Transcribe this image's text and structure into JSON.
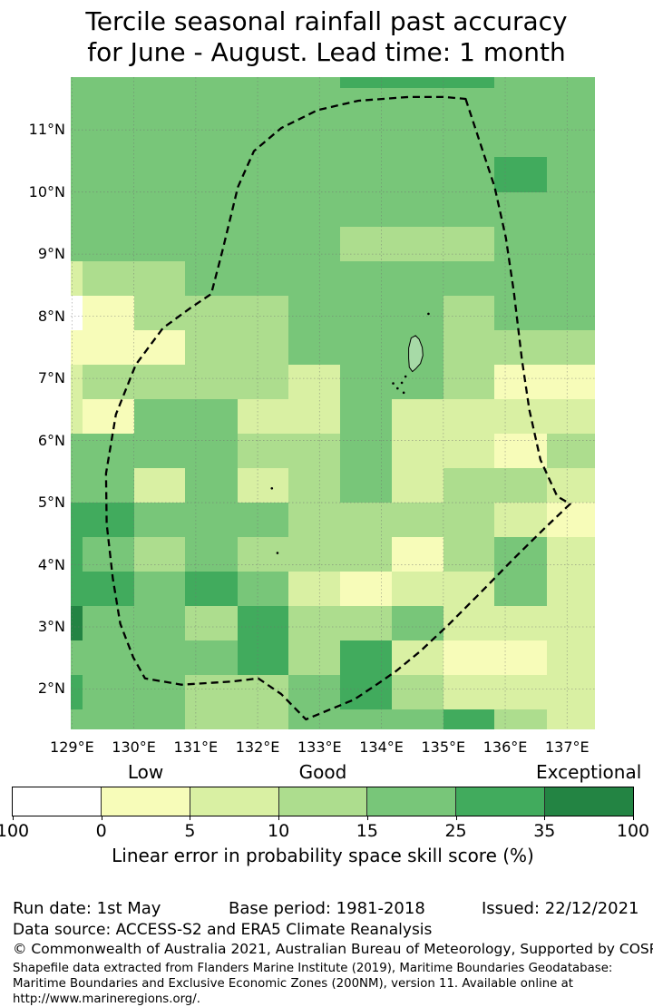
{
  "title": {
    "line1": "Tercile seasonal rainfall past accuracy",
    "line2": "for June - August. Lead time: 1 month"
  },
  "colorbar": {
    "region_labels": [
      "Low",
      "Good",
      "Exceptional"
    ],
    "region_positions": [
      1.5,
      3.5,
      6.5
    ],
    "tick_labels": [
      "100",
      "0",
      "5",
      "10",
      "15",
      "25",
      "35",
      "100"
    ],
    "segment_colors": [
      "#ffffff",
      "#f7fcb9",
      "#d9f0a3",
      "#addd8e",
      "#78c679",
      "#41ab5d",
      "#238443"
    ],
    "axis_title": "Linear error in probability space skill score (%)"
  },
  "footer": {
    "run_date": "Run date: 1st May",
    "base_period": "Base period: 1981-2018",
    "issued": "Issued: 22/12/2021",
    "data_source": "Data source: ACCESS-S2 and ERA5 Climate Reanalysis",
    "copyright": "© Commonwealth of Australia 2021, Australian Bureau of Meteorology, Supported by COSPPac",
    "shapefile_note": "Shapefile data extracted from Flanders Marine Institute (2019), Maritime Boundaries Geodatabase: Maritime Boundaries and Exclusive Economic Zones (200NM), version 11. Available online at http://www.marineregions.org/."
  },
  "chart_data": {
    "type": "heatmap",
    "title": "Tercile seasonal rainfall past accuracy for June - August. Lead time: 1 month",
    "legend_title": "Linear error in probability space skill score (%)",
    "class_bins": [
      "<0",
      "0-5",
      "5-10",
      "10-15",
      "15-25",
      "25-35",
      ">35"
    ],
    "class_names": [
      "below-zero",
      "low",
      "low-good",
      "good-low",
      "good",
      "very-good",
      "exceptional"
    ],
    "palette": [
      "#ffffff",
      "#f7fcb9",
      "#d9f0a3",
      "#addd8e",
      "#78c679",
      "#41ab5d",
      "#238443"
    ],
    "lon_range": [
      128.98,
      137.45
    ],
    "lat_range": [
      1.35,
      11.85
    ],
    "x_ticks": [
      {
        "label": "129°E",
        "lon": 129
      },
      {
        "label": "130°E",
        "lon": 130
      },
      {
        "label": "131°E",
        "lon": 131
      },
      {
        "label": "132°E",
        "lon": 132
      },
      {
        "label": "133°E",
        "lon": 133
      },
      {
        "label": "134°E",
        "lon": 134
      },
      {
        "label": "135°E",
        "lon": 135
      },
      {
        "label": "136°E",
        "lon": 136
      },
      {
        "label": "137°E",
        "lon": 137
      }
    ],
    "y_ticks": [
      {
        "label": "11°N",
        "lat": 11
      },
      {
        "label": "10°N",
        "lat": 10
      },
      {
        "label": "9°N",
        "lat": 9
      },
      {
        "label": "8°N",
        "lat": 8
      },
      {
        "label": "7°N",
        "lat": 7
      },
      {
        "label": "6°N",
        "lat": 6
      },
      {
        "label": "5°N",
        "lat": 5
      },
      {
        "label": "4°N",
        "lat": 4
      },
      {
        "label": "3°N",
        "lat": 3
      },
      {
        "label": "2°N",
        "lat": 2
      }
    ],
    "lon_edges": [
      128.98,
      129.17,
      130.0,
      130.83,
      131.67,
      132.5,
      133.33,
      134.17,
      135.0,
      135.83,
      136.67,
      137.45
    ],
    "lat_edges": [
      11.85,
      11.67,
      11.11,
      10.56,
      10.0,
      9.44,
      8.89,
      8.33,
      7.78,
      7.22,
      6.67,
      6.11,
      5.56,
      5.0,
      4.44,
      3.89,
      3.33,
      2.78,
      2.22,
      1.67,
      1.35
    ],
    "grid": [
      [
        4,
        4,
        4,
        4,
        4,
        4,
        5,
        5,
        5,
        4,
        4
      ],
      [
        4,
        4,
        4,
        4,
        4,
        4,
        4,
        4,
        4,
        4,
        4
      ],
      [
        4,
        4,
        4,
        4,
        4,
        4,
        4,
        4,
        4,
        4,
        4
      ],
      [
        4,
        4,
        4,
        4,
        4,
        4,
        4,
        4,
        4,
        5,
        4
      ],
      [
        4,
        4,
        4,
        4,
        4,
        4,
        4,
        4,
        4,
        4,
        4
      ],
      [
        4,
        4,
        4,
        4,
        4,
        4,
        3,
        3,
        3,
        4,
        4
      ],
      [
        2,
        3,
        3,
        4,
        4,
        4,
        4,
        4,
        4,
        4,
        4
      ],
      [
        0,
        1,
        3,
        3,
        3,
        4,
        4,
        4,
        3,
        4,
        4
      ],
      [
        1,
        1,
        1,
        3,
        3,
        4,
        4,
        4,
        3,
        3,
        3
      ],
      [
        2,
        3,
        3,
        3,
        3,
        2,
        4,
        4,
        3,
        1,
        1
      ],
      [
        2,
        1,
        4,
        4,
        2,
        2,
        4,
        2,
        2,
        2,
        2
      ],
      [
        4,
        4,
        4,
        4,
        3,
        3,
        4,
        2,
        2,
        1,
        3
      ],
      [
        4,
        4,
        2,
        4,
        2,
        3,
        4,
        2,
        3,
        3,
        2
      ],
      [
        5,
        5,
        4,
        4,
        4,
        3,
        3,
        3,
        3,
        2,
        1
      ],
      [
        5,
        4,
        3,
        4,
        3,
        3,
        3,
        1,
        3,
        4,
        2
      ],
      [
        5,
        5,
        4,
        5,
        4,
        2,
        1,
        2,
        2,
        4,
        2
      ],
      [
        6,
        4,
        4,
        3,
        5,
        3,
        3,
        4,
        2,
        2,
        2
      ],
      [
        4,
        4,
        4,
        4,
        5,
        3,
        5,
        2,
        1,
        1,
        2
      ],
      [
        5,
        4,
        4,
        3,
        3,
        4,
        5,
        3,
        2,
        2,
        2
      ],
      [
        4,
        4,
        4,
        3,
        3,
        4,
        4,
        4,
        5,
        3,
        2
      ]
    ],
    "eez_boundary": [
      [
        135.36,
        11.5
      ],
      [
        135.83,
        10.08
      ],
      [
        136.01,
        9.27
      ],
      [
        136.14,
        8.39
      ],
      [
        136.27,
        7.3
      ],
      [
        136.39,
        6.49
      ],
      [
        136.57,
        5.69
      ],
      [
        136.84,
        5.1
      ],
      [
        137.05,
        4.98
      ],
      [
        136.64,
        4.59
      ],
      [
        136.12,
        4.08
      ],
      [
        135.61,
        3.56
      ],
      [
        135.1,
        3.05
      ],
      [
        134.63,
        2.61
      ],
      [
        134.24,
        2.29
      ],
      [
        133.92,
        2.07
      ],
      [
        133.56,
        1.83
      ],
      [
        132.78,
        1.51
      ],
      [
        132.38,
        1.92
      ],
      [
        132.01,
        2.17
      ],
      [
        131.57,
        2.12
      ],
      [
        130.77,
        2.07
      ],
      [
        130.18,
        2.17
      ],
      [
        129.99,
        2.51
      ],
      [
        129.78,
        3.05
      ],
      [
        129.66,
        3.78
      ],
      [
        129.56,
        4.66
      ],
      [
        129.55,
        5.47
      ],
      [
        129.71,
        6.42
      ],
      [
        130.03,
        7.22
      ],
      [
        130.47,
        7.81
      ],
      [
        130.91,
        8.13
      ],
      [
        131.25,
        8.36
      ],
      [
        131.43,
        9.05
      ],
      [
        131.68,
        10.08
      ],
      [
        131.94,
        10.66
      ],
      [
        132.38,
        11.03
      ],
      [
        132.97,
        11.32
      ],
      [
        133.63,
        11.47
      ],
      [
        134.44,
        11.53
      ],
      [
        135.02,
        11.53
      ]
    ],
    "islands": {
      "main_outline": [
        [
          134.48,
          7.65
        ],
        [
          134.55,
          7.69
        ],
        [
          134.61,
          7.63
        ],
        [
          134.66,
          7.5
        ],
        [
          134.67,
          7.37
        ],
        [
          134.63,
          7.24
        ],
        [
          134.55,
          7.15
        ],
        [
          134.5,
          7.11
        ],
        [
          134.45,
          7.18
        ],
        [
          134.44,
          7.32
        ],
        [
          134.44,
          7.49
        ]
      ],
      "dots": [
        [
          134.39,
          7.03
        ],
        [
          134.33,
          6.93
        ],
        [
          134.26,
          6.84
        ],
        [
          134.19,
          6.92
        ],
        [
          134.36,
          6.77
        ],
        [
          134.76,
          8.04
        ],
        [
          132.23,
          5.23
        ],
        [
          132.32,
          4.19
        ]
      ]
    },
    "grid_lines": {
      "lon": [
        129,
        130,
        131,
        132,
        133,
        134,
        135,
        136,
        137
      ],
      "lat": [
        2,
        3,
        4,
        5,
        6,
        7,
        8,
        9,
        10,
        11
      ]
    },
    "boundary_style": {
      "color": "#000000",
      "dash": "dashed"
    }
  }
}
